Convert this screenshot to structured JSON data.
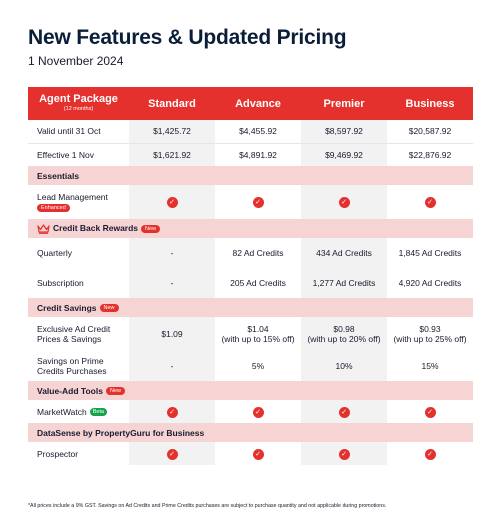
{
  "header": {
    "title": "New Features & Updated Pricing",
    "date": "1 November 2024"
  },
  "table": {
    "package_label": "Agent Package",
    "package_sub": "(12 months)",
    "plans": [
      "Standard",
      "Advance",
      "Premier",
      "Business"
    ],
    "valid_row": {
      "label": "Valid until 31 Oct",
      "values": [
        "$1,425.72",
        "$4,455.92",
        "$8,597.92",
        "$20,587.92"
      ]
    },
    "effective_row": {
      "label": "Effective 1 Nov",
      "values": [
        "$1,621.92",
        "$4,891.92",
        "$9,469.92",
        "$22,876.92"
      ]
    },
    "essentials": {
      "title": "Essentials",
      "lead_label": "Lead Management",
      "lead_badge": "Enhanced"
    },
    "credit_back": {
      "title": "Credit Back Rewards",
      "badge": "New",
      "quarterly": {
        "label": "Quarterly",
        "values": [
          "-",
          "82 Ad Credits",
          "434 Ad Credits",
          "1,845 Ad Credits"
        ]
      },
      "subscription": {
        "label": "Subscription",
        "values": [
          "-",
          "205 Ad Credits",
          "1,277 Ad Credits",
          "4,920 Ad Credits"
        ]
      }
    },
    "credit_savings": {
      "title": "Credit Savings",
      "badge": "New",
      "exclusive": {
        "label_line1": "Exclusive Ad Credit",
        "label_line2": "Prices & Savings",
        "values": [
          "$1.09",
          "$1.04",
          "$0.98",
          "$0.93"
        ],
        "notes": [
          "",
          "(with up to 15% off)",
          "(with up to 20% off)",
          "(with up to 25% off)"
        ]
      },
      "prime": {
        "label_line1": "Savings on Prime",
        "label_line2": "Credits Purchases",
        "values": [
          "-",
          "5%",
          "10%",
          "15%"
        ]
      }
    },
    "value_add": {
      "title": "Value-Add Tools",
      "badge": "New",
      "marketwatch_label": "MarketWatch",
      "marketwatch_badge": "Beta"
    },
    "datasense": {
      "title": "DataSense by PropertyGuru for Business",
      "prospector_label": "Prospector"
    },
    "check_glyph": "✓"
  },
  "footnote": "*All prices include a 9% GST. Savings on Ad Credits and Prime Credits purchases are subject to purchase quantity and not applicable during promotions.",
  "colors": {
    "accent": "#e4312d",
    "section_bg": "#f7d4d4",
    "title": "#0b1e38",
    "beta": "#14a34a"
  }
}
